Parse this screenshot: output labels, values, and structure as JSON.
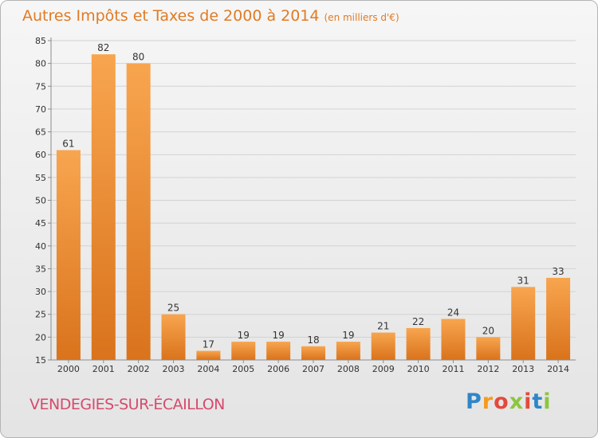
{
  "title": {
    "main": "Autres Impôts et Taxes de 2000 à 2014",
    "unit": "(en milliers d'€)"
  },
  "location": "VENDEGIES-SUR-ÉCAILLON",
  "logo": {
    "letters": [
      "P",
      "r",
      "o",
      "x",
      "i",
      "t",
      "i"
    ],
    "colors": [
      "#2f86c8",
      "#f39c1e",
      "#e24b3c",
      "#8cc63e",
      "#e24b3c",
      "#2f86c8",
      "#8cc63e"
    ]
  },
  "colors": {
    "bar_light": "#f8a54f",
    "bar_dark": "#d9731c",
    "title": "#e07b24",
    "location": "#d64a6e",
    "axis": "#8c8c8c"
  },
  "chart_data": {
    "type": "bar",
    "categories": [
      "2000",
      "2001",
      "2002",
      "2003",
      "2004",
      "2005",
      "2006",
      "2007",
      "2008",
      "2009",
      "2010",
      "2011",
      "2012",
      "2013",
      "2014"
    ],
    "values": [
      61,
      82,
      80,
      25,
      17,
      19,
      19,
      18,
      19,
      21,
      22,
      24,
      20,
      31,
      33
    ],
    "title": "Autres Impôts et Taxes de 2000 à 2014",
    "xlabel": "",
    "ylabel": "",
    "ylim": [
      15,
      85
    ],
    "yticks": [
      15,
      20,
      25,
      30,
      35,
      40,
      45,
      50,
      55,
      60,
      65,
      70,
      75,
      80,
      85
    ],
    "grid": true,
    "data_labels": true
  }
}
